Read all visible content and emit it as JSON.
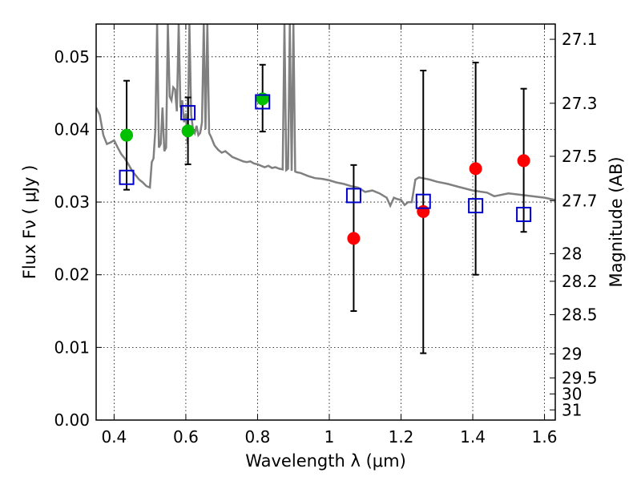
{
  "chart_data": {
    "type": "scatter",
    "xlabel": "Wavelength  λ (μm)",
    "ylabel": "Flux  Fν  ( μJy )",
    "y2label": "Magnitude (AB)",
    "xlim": [
      0.35,
      1.63
    ],
    "ylim": [
      0.0,
      0.0545
    ],
    "grid": true,
    "x_ticks": [
      0.4,
      0.6,
      0.8,
      1.0,
      1.2,
      1.4,
      1.6
    ],
    "x_tick_labels": [
      "0.4",
      "0.6",
      "0.8",
      "1",
      "1.2",
      "1.4",
      "1.6"
    ],
    "y_ticks": [
      0.0,
      0.01,
      0.02,
      0.03,
      0.04,
      0.05
    ],
    "y_tick_labels": [
      "0.00",
      "0.01",
      "0.02",
      "0.03",
      "0.04",
      "0.05"
    ],
    "y2_ticks": [
      {
        "label": "27.1",
        "flux": 0.0524
      },
      {
        "label": "27.3",
        "flux": 0.0436
      },
      {
        "label": "27.5",
        "flux": 0.0363
      },
      {
        "label": "27.7",
        "flux": 0.0302
      },
      {
        "label": "28",
        "flux": 0.0229
      },
      {
        "label": "28.2",
        "flux": 0.0191
      },
      {
        "label": "28.5",
        "flux": 0.0145
      },
      {
        "label": "29",
        "flux": 0.0091
      },
      {
        "label": "29.5",
        "flux": 0.0058
      },
      {
        "label": "30",
        "flux": 0.0036
      },
      {
        "label": "31",
        "flux": 0.0014
      }
    ],
    "observed": [
      {
        "x": 0.435,
        "y": 0.0392,
        "color": "#00c000",
        "err_low": 0.0317,
        "err_high": 0.0467
      },
      {
        "x": 0.606,
        "y": 0.0398,
        "color": "#00c000",
        "err_low": 0.0352,
        "err_high": 0.0444
      },
      {
        "x": 0.814,
        "y": 0.0442,
        "color": "#00c000",
        "err_low": 0.0397,
        "err_high": 0.0489
      },
      {
        "x": 1.068,
        "y": 0.025,
        "color": "#ff0000",
        "err_low": 0.015,
        "err_high": 0.0351
      },
      {
        "x": 1.262,
        "y": 0.0287,
        "color": "#ff0000",
        "err_low": 0.0092,
        "err_high": 0.0481
      },
      {
        "x": 1.408,
        "y": 0.0346,
        "color": "#ff0000",
        "err_low": 0.02,
        "err_high": 0.0492
      },
      {
        "x": 1.542,
        "y": 0.0357,
        "color": "#ff0000",
        "err_low": 0.0259,
        "err_high": 0.0456
      }
    ],
    "model_bands": {
      "x": [
        0.435,
        0.606,
        0.814,
        1.068,
        1.262,
        1.408,
        1.542
      ],
      "y": [
        0.0334,
        0.0423,
        0.0438,
        0.0309,
        0.0301,
        0.0295,
        0.0283
      ],
      "color": "#0000cc"
    },
    "model_spectrum": {
      "color": "#808080",
      "x": [
        0.35,
        0.36,
        0.37,
        0.38,
        0.39,
        0.4,
        0.41,
        0.42,
        0.43,
        0.44,
        0.45,
        0.46,
        0.47,
        0.48,
        0.49,
        0.5,
        0.505,
        0.51,
        0.515,
        0.52,
        0.525,
        0.53,
        0.535,
        0.54,
        0.545,
        0.55,
        0.555,
        0.56,
        0.565,
        0.57,
        0.575,
        0.58,
        0.585,
        0.59,
        0.595,
        0.6,
        0.605,
        0.61,
        0.615,
        0.62,
        0.625,
        0.63,
        0.635,
        0.64,
        0.645,
        0.65,
        0.655,
        0.66,
        0.665,
        0.67,
        0.68,
        0.69,
        0.7,
        0.71,
        0.72,
        0.73,
        0.74,
        0.75,
        0.76,
        0.77,
        0.78,
        0.79,
        0.8,
        0.81,
        0.82,
        0.83,
        0.84,
        0.85,
        0.86,
        0.87,
        0.875,
        0.88,
        0.885,
        0.89,
        0.895,
        0.9,
        0.905,
        0.91,
        0.92,
        0.94,
        0.96,
        0.98,
        1.0,
        1.02,
        1.04,
        1.06,
        1.08,
        1.09,
        1.1,
        1.12,
        1.14,
        1.16,
        1.17,
        1.18,
        1.19,
        1.2,
        1.21,
        1.22,
        1.23,
        1.24,
        1.25,
        1.26,
        1.28,
        1.3,
        1.33,
        1.36,
        1.4,
        1.44,
        1.46,
        1.5,
        1.55,
        1.6,
        1.63
      ],
      "y": [
        0.043,
        0.042,
        0.0392,
        0.038,
        0.0382,
        0.0385,
        0.0375,
        0.0366,
        0.036,
        0.0352,
        0.0343,
        0.0337,
        0.0331,
        0.0327,
        0.0322,
        0.032,
        0.0355,
        0.036,
        0.04,
        0.055,
        0.0375,
        0.038,
        0.043,
        0.037,
        0.0375,
        0.055,
        0.0445,
        0.044,
        0.0458,
        0.0455,
        0.0425,
        0.055,
        0.043,
        0.044,
        0.041,
        0.0422,
        0.038,
        0.055,
        0.042,
        0.04,
        0.0395,
        0.0405,
        0.0392,
        0.0395,
        0.041,
        0.055,
        0.04,
        0.055,
        0.0395,
        0.039,
        0.0378,
        0.0372,
        0.0368,
        0.037,
        0.0366,
        0.0362,
        0.036,
        0.0358,
        0.0356,
        0.0355,
        0.0356,
        0.0353,
        0.0352,
        0.035,
        0.0348,
        0.035,
        0.0347,
        0.0348,
        0.0346,
        0.0345,
        0.055,
        0.0344,
        0.0346,
        0.055,
        0.0343,
        0.055,
        0.0342,
        0.0341,
        0.034,
        0.0336,
        0.0333,
        0.0332,
        0.033,
        0.0327,
        0.0325,
        0.0322,
        0.032,
        0.0317,
        0.0314,
        0.0316,
        0.0312,
        0.0306,
        0.0295,
        0.0306,
        0.0304,
        0.0303,
        0.0296,
        0.03,
        0.03,
        0.0331,
        0.0334,
        0.0333,
        0.0331,
        0.0328,
        0.0325,
        0.0321,
        0.0316,
        0.0313,
        0.0308,
        0.0312,
        0.0309,
        0.0306,
        0.0303
      ]
    }
  }
}
